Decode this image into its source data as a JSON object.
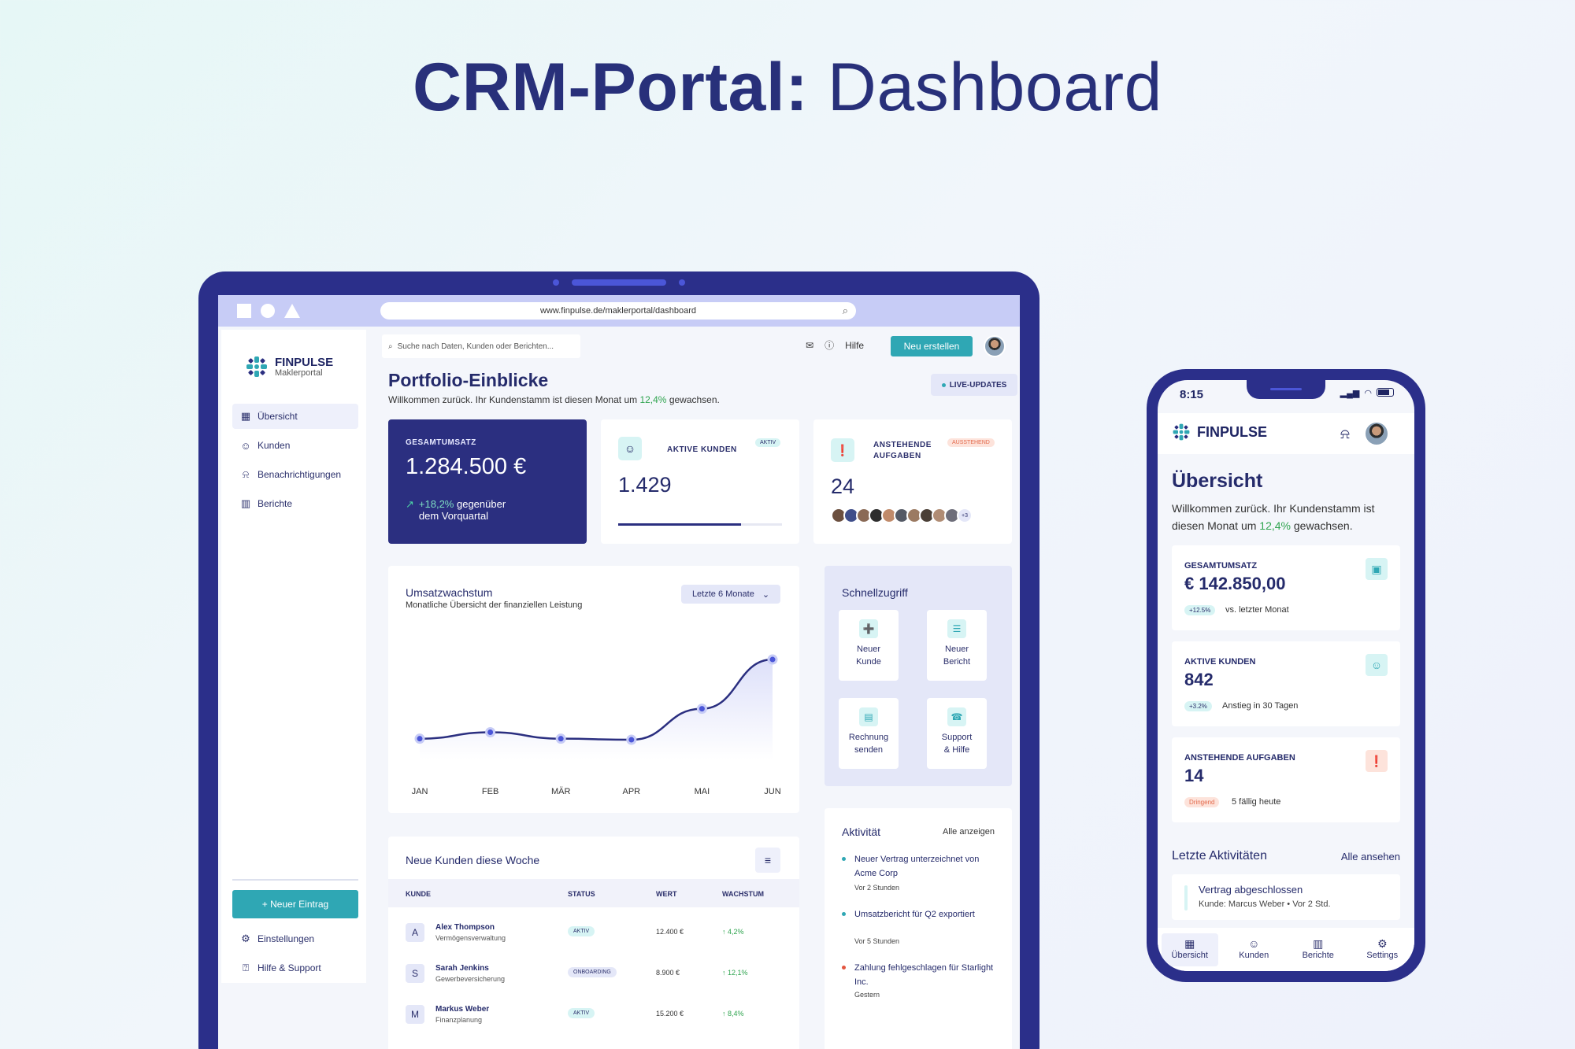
{
  "headline": {
    "bold": "CRM-Portal:",
    "light": "Dashboard"
  },
  "browser": {
    "url": "www.finpulse.de/maklerportal/dashboard"
  },
  "sidebar": {
    "brand_name": "FINPULSE",
    "brand_sub": "Maklerportal",
    "items": [
      {
        "label": "Übersicht",
        "icon": "grid-icon"
      },
      {
        "label": "Kunden",
        "icon": "users-icon"
      },
      {
        "label": "Benachrichtigungen",
        "icon": "bell-icon"
      },
      {
        "label": "Berichte",
        "icon": "chart-icon"
      }
    ],
    "new_entry": "+ Neuer Eintrag",
    "bottom": [
      {
        "label": "Einstellungen",
        "icon": "gear-icon"
      },
      {
        "label": "Hilfe & Support",
        "icon": "help-icon"
      }
    ]
  },
  "topbar": {
    "search_placeholder": "Suche nach Daten, Kunden oder Berichten...",
    "help": "Hilfe",
    "create": "Neu erstellen"
  },
  "header": {
    "title": "Portfolio-Einblicke",
    "sub_pre": "Willkommen zurück. Ihr Kundenstamm ist diesen Monat um ",
    "sub_pct": "12,4%",
    "sub_post": " gewachsen.",
    "live": "LIVE-UPDATES"
  },
  "kpis": {
    "revenue": {
      "label": "GESAMTUMSATZ",
      "value": "1.284.500 €",
      "trend_pct": "+18,2%",
      "trend_text": "gegenüber",
      "trend_text2": "dem Vorquartal"
    },
    "customers": {
      "label": "AKTIVE KUNDEN",
      "badge": "AKTIV",
      "value": "1.429",
      "progress": 0.75
    },
    "tasks": {
      "label1": "ANSTEHENDE",
      "label2": "AUFGABEN",
      "badge": "AUSSTEHEND",
      "value": "24",
      "more": "+3"
    }
  },
  "chart_card": {
    "title": "Umsatzwachstum",
    "subtitle": "Monatliche Übersicht der finanziellen Leistung",
    "range": "Letzte 6 Monate"
  },
  "chart_data": {
    "type": "line",
    "categories": [
      "JAN",
      "FEB",
      "MÄR",
      "APR",
      "MAI",
      "JUN"
    ],
    "values": [
      12,
      18,
      12,
      11,
      40,
      86
    ],
    "title": "Umsatzwachstum",
    "xlabel": "",
    "ylabel": "",
    "grid": false,
    "legend": "none"
  },
  "quick": {
    "title": "Schnellzugriff",
    "tiles": [
      {
        "l1": "Neuer",
        "l2": "Kunde",
        "icon": "add-user-icon"
      },
      {
        "l1": "Neuer",
        "l2": "Bericht",
        "icon": "report-icon"
      },
      {
        "l1": "Rechnung",
        "l2": "senden",
        "icon": "invoice-icon"
      },
      {
        "l1": "Support",
        "l2": "& Hilfe",
        "icon": "headset-icon"
      }
    ]
  },
  "table": {
    "title": "Neue Kunden diese Woche",
    "headers": [
      "KUNDE",
      "STATUS",
      "WERT",
      "WACHSTUM"
    ],
    "rows": [
      {
        "initial": "A",
        "name": "Alex Thompson",
        "category": "Vermögensverwaltung",
        "status": "AKTIV",
        "value": "12.400 €",
        "growth": "↑ 4,2%"
      },
      {
        "initial": "S",
        "name": "Sarah Jenkins",
        "category": "Gewerbeversicherung",
        "status": "ONBOARDING",
        "value": "8.900 €",
        "growth": "↑ 12,1%"
      },
      {
        "initial": "M",
        "name": "Markus Weber",
        "category": "Finanzplanung",
        "status": "AKTIV",
        "value": "15.200 €",
        "growth": "↑ 8,4%"
      }
    ]
  },
  "activity": {
    "title": "Aktivität",
    "all": "Alle anzeigen",
    "items": [
      {
        "text": "Neuer Vertrag unterzeichnet von Acme Corp",
        "when": "Vor 2 Stunden"
      },
      {
        "text": "Umsatzbericht für Q2 exportiert",
        "when": "Vor 5 Stunden"
      },
      {
        "text": "Zahlung fehlgeschlagen für Starlight Inc.",
        "when": "Gestern"
      }
    ]
  },
  "phone": {
    "time": "8:15",
    "brand": "FINPULSE",
    "title": "Übersicht",
    "sub_pre": "Willkommen zurück. Ihr Kundenstamm ist diesen Monat um ",
    "sub_pct": "12,4%",
    "sub_post": " gewachsen.",
    "cards": [
      {
        "label": "GESAMTUMSATZ",
        "value": "€ 142.850,00",
        "badge": "+12.5%",
        "note": "vs. letzter Monat",
        "icon": "money-icon"
      },
      {
        "label": "AKTIVE KUNDEN",
        "value": "842",
        "badge": "+3.2%",
        "note": "Anstieg in 30 Tagen",
        "icon": "users-icon"
      },
      {
        "label": "ANSTEHENDE AUFGABEN",
        "value": "14",
        "badge": "Dringend",
        "note": "5 fällig heute",
        "icon": "alert-icon"
      }
    ],
    "last_title": "Letzte Aktivitäten",
    "last_all": "Alle ansehen",
    "last_item_title": "Vertrag abgeschlossen",
    "last_item_sub": "Kunde: Marcus Weber • Vor 2 Std.",
    "tabs": [
      "Übersicht",
      "Kunden",
      "Berichte",
      "Settings"
    ]
  }
}
